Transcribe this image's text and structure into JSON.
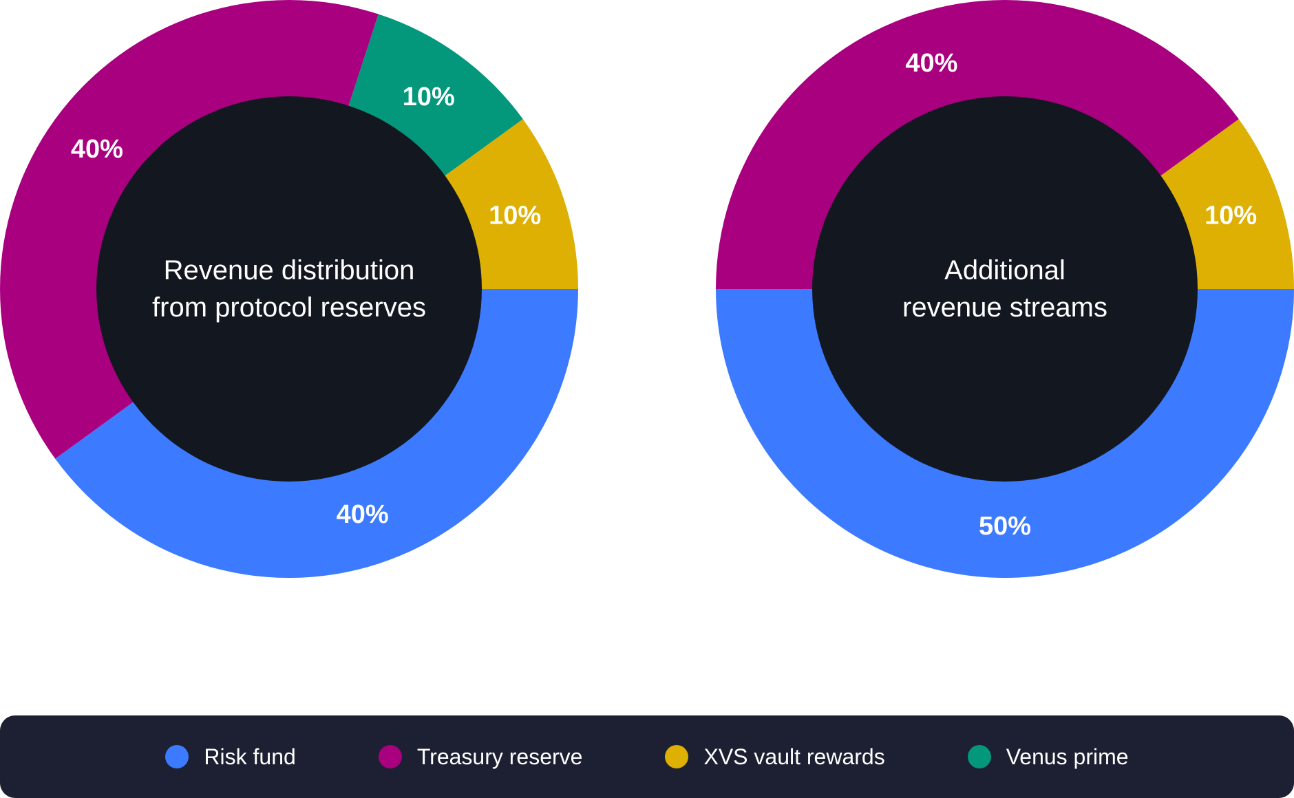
{
  "colors": {
    "risk_fund": "#3c7aff",
    "treasury_reserve": "#a9007f",
    "xvs_vault_rewards": "#ddb003",
    "venus_prime": "#03977c",
    "center": "#131720",
    "legend_bg": "#1d2032"
  },
  "chart_data": [
    {
      "type": "pie",
      "title": "Revenue distribution from protocol reserves",
      "title_lines": [
        "Revenue distribution",
        "from protocol reserves"
      ],
      "slices": [
        {
          "name": "Risk fund",
          "value": 40,
          "label": "40%",
          "color": "#3c7aff"
        },
        {
          "name": "Treasury reserve",
          "value": 40,
          "label": "40%",
          "color": "#a9007f"
        },
        {
          "name": "Venus prime",
          "value": 10,
          "label": "10%",
          "color": "#03977c"
        },
        {
          "name": "XVS vault rewards",
          "value": 10,
          "label": "10%",
          "color": "#ddb003"
        }
      ]
    },
    {
      "type": "pie",
      "title": "Additional revenue streams",
      "title_lines": [
        "Additional",
        "revenue streams"
      ],
      "slices": [
        {
          "name": "Risk fund",
          "value": 50,
          "label": "50%",
          "color": "#3c7aff"
        },
        {
          "name": "Treasury reserve",
          "value": 40,
          "label": "40%",
          "color": "#a9007f"
        },
        {
          "name": "XVS vault rewards",
          "value": 10,
          "label": "10%",
          "color": "#ddb003"
        }
      ]
    }
  ],
  "legend": {
    "items": [
      {
        "label": "Risk fund",
        "color": "#3c7aff"
      },
      {
        "label": "Treasury reserve",
        "color": "#a9007f"
      },
      {
        "label": "XVS vault rewards",
        "color": "#ddb003"
      },
      {
        "label": "Venus prime",
        "color": "#03977c"
      }
    ]
  }
}
